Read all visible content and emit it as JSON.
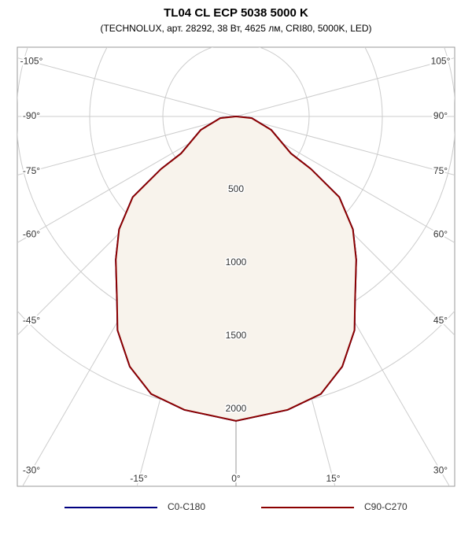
{
  "chart_data": {
    "type": "polar",
    "title": "TL04 CL ECP 5038 5000 K",
    "subtitle": "(TECHNOLUX, арт. 28292, 38 Вт, 4625 лм, CRI80, 5000K, LED)",
    "x": [
      -90,
      -84,
      -69,
      -56,
      -55,
      -52,
      -46,
      -40,
      -33,
      -29,
      -23,
      -17,
      -10,
      0,
      10,
      17,
      23,
      29,
      33,
      40,
      46,
      52,
      55,
      56,
      69,
      84,
      90
    ],
    "series": [
      {
        "name": "C0-C180",
        "color": "#000080",
        "values": [
          0,
          108,
          258,
          453,
          625,
          896,
          1111,
          1278,
          1494,
          1670,
          1857,
          1983,
          2035,
          2080,
          2035,
          1983,
          1857,
          1670,
          1494,
          1278,
          1111,
          896,
          625,
          453,
          258,
          108,
          0
        ]
      },
      {
        "name": "C90-C270",
        "color": "#8b0000",
        "values": [
          0,
          108,
          258,
          453,
          625,
          896,
          1111,
          1278,
          1494,
          1670,
          1857,
          1983,
          2035,
          2080,
          2035,
          1983,
          1857,
          1670,
          1494,
          1278,
          1111,
          896,
          625,
          453,
          258,
          108,
          0
        ]
      }
    ],
    "rlim": [
      0,
      2500
    ],
    "rticks": [
      500,
      1000,
      1500,
      2000
    ],
    "angleticks": [
      {
        "value": -105,
        "label": "-105°"
      },
      {
        "value": -90,
        "label": "-90°"
      },
      {
        "value": -75,
        "label": "-75°"
      },
      {
        "value": -60,
        "label": "-60°"
      },
      {
        "value": -45,
        "label": "-45°"
      },
      {
        "value": -30,
        "label": "-30°"
      },
      {
        "value": -15,
        "label": "-15°"
      },
      {
        "value": 0,
        "label": "0°"
      },
      {
        "value": 15,
        "label": "15°"
      },
      {
        "value": 30,
        "label": "30°"
      },
      {
        "value": 45,
        "label": "45°"
      },
      {
        "value": 60,
        "label": "60°"
      },
      {
        "value": 75,
        "label": "75°"
      },
      {
        "value": 90,
        "label": "90°"
      },
      {
        "value": 105,
        "label": "105°"
      }
    ],
    "fill": "#f8f3ec"
  }
}
